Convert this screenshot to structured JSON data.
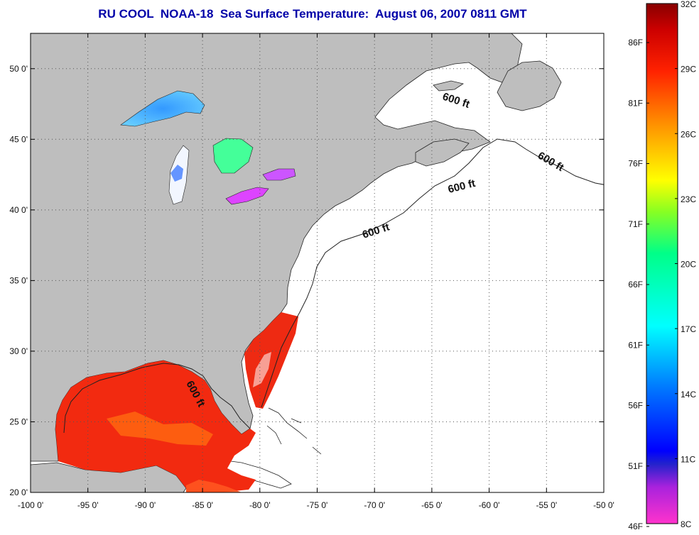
{
  "title": "RU COOL  NOAA-18  Sea Surface Temperature:  August 06, 2007 0811 GMT",
  "map": {
    "lon_range": [
      -100,
      -50
    ],
    "lat_range": [
      20,
      52.5
    ],
    "lon_ticks": [
      "-100 0'",
      "-95 0'",
      "-90 0'",
      "-85 0'",
      "-80 0'",
      "-75 0'",
      "-70 0'",
      "-65 0'",
      "-60 0'",
      "-55 0'",
      "-50 0'"
    ],
    "lat_ticks": [
      "20 0'",
      "25 0'",
      "30 0'",
      "35 0'",
      "40 0'",
      "45 0'",
      "50 0'"
    ],
    "depth_contour_label": "600 ft",
    "land_color": "#bebebe",
    "no_data_color": "#ffffff"
  },
  "colorbar": {
    "celsius_labels": [
      "32C",
      "29C",
      "26C",
      "23C",
      "20C",
      "17C",
      "14C",
      "11C",
      "8C"
    ],
    "fahrenheit_labels": [
      "86F",
      "81F",
      "76F",
      "71F",
      "66F",
      "61F",
      "56F",
      "51F",
      "46F"
    ],
    "colors": [
      "#8b0000",
      "#ff1a00",
      "#ff8c00",
      "#ffff00",
      "#66ff33",
      "#00ffff",
      "#0064ff",
      "#0000ff",
      "#8800cc",
      "#ff00ff"
    ]
  }
}
